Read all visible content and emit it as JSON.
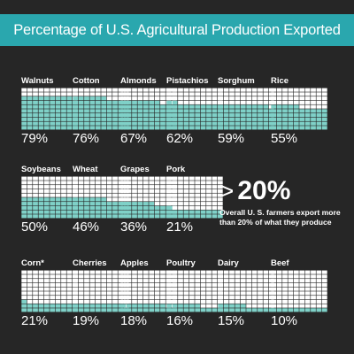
{
  "title": "Percentage of U.S. Agricultural Production Exported",
  "colors": {
    "background": "#262626",
    "banner": "#2aa7ae",
    "filled": "#7fd1c8",
    "empty": "#ffffff",
    "text": "#ffffff"
  },
  "callout": {
    "prefix": ">",
    "value": "20%",
    "text": "Overall  U. S. farmers export more than 20% of what they produce"
  },
  "chart_data": {
    "type": "waffle",
    "title": "Percentage of U.S. Agricultural Production Exported",
    "unit": "%",
    "categories": [
      "Walnuts",
      "Cotton",
      "Almonds",
      "Pistachios",
      "Sorghum",
      "Rice",
      "Soybeans",
      "Wheat",
      "Grapes",
      "Pork",
      "Corn*",
      "Cherries",
      "Apples",
      "Poultry",
      "Dairy",
      "Beef"
    ],
    "values": [
      79,
      76,
      67,
      62,
      59,
      55,
      50,
      46,
      36,
      21,
      21,
      19,
      18,
      16,
      15,
      10
    ],
    "labels": [
      "79%",
      "76%",
      "67%",
      "62%",
      "59%",
      "55%",
      "50%",
      "46%",
      "36%",
      "21%",
      "21%",
      "19%",
      "18%",
      "16%",
      "15%",
      "10%"
    ]
  }
}
